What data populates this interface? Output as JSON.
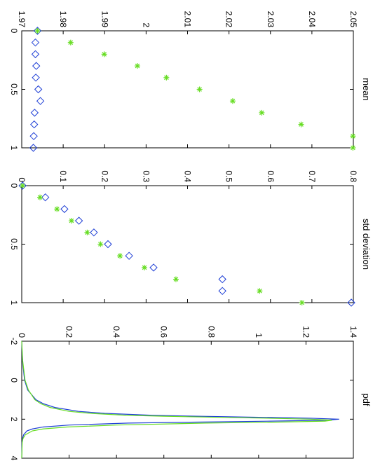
{
  "chart_data": [
    {
      "type": "scatter",
      "title": "mean",
      "xlabel": "",
      "ylabel": "",
      "xlim": [
        0,
        1
      ],
      "ylim": [
        1.97,
        2.05
      ],
      "x_ticks": [
        "0",
        "0.5",
        "1"
      ],
      "y_ticks": [
        "1.97",
        "1.98",
        "1.99",
        "2",
        "2.01",
        "2.02",
        "2.03",
        "2.04",
        "2.05"
      ],
      "x_tick_values": [
        0,
        0.5,
        1
      ],
      "y_tick_values": [
        1.97,
        1.98,
        1.99,
        2.0,
        2.01,
        2.02,
        2.03,
        2.04,
        2.05
      ],
      "series": [
        {
          "marker": "diamond",
          "color": "#1f3fd6",
          "x": [
            0,
            0.1,
            0.2,
            0.3,
            0.4,
            0.5,
            0.6,
            0.7,
            0.8,
            0.9,
            1.0
          ],
          "y": [
            1.9738,
            1.9733,
            1.9733,
            1.9735,
            1.9734,
            1.974,
            1.9745,
            1.9731,
            1.973,
            1.9729,
            1.9728
          ]
        },
        {
          "marker": "asterisk",
          "color": "#66dd22",
          "x": [
            0,
            0.1,
            0.2,
            0.3,
            0.4,
            0.5,
            0.6,
            0.7,
            0.8,
            0.9,
            1.0
          ],
          "y": [
            1.9738,
            1.9818,
            1.9899,
            1.9979,
            2.0049,
            2.0129,
            2.0209,
            2.0279,
            2.0374,
            2.0499,
            2.0499
          ]
        }
      ]
    },
    {
      "type": "scatter",
      "title": "std deviation",
      "xlabel": "",
      "ylabel": "",
      "xlim": [
        0,
        1
      ],
      "ylim": [
        0,
        0.8
      ],
      "x_ticks": [
        "0",
        "0.5",
        "1"
      ],
      "y_ticks": [
        "0",
        "0.1",
        "0.2",
        "0.3",
        "0.4",
        "0.5",
        "0.6",
        "0.7",
        "0.8"
      ],
      "x_tick_values": [
        0,
        0.5,
        1
      ],
      "y_tick_values": [
        0,
        0.1,
        0.2,
        0.3,
        0.4,
        0.5,
        0.6,
        0.7,
        0.8
      ],
      "series": [
        {
          "marker": "diamond",
          "color": "#1f3fd6",
          "x": [
            0,
            0.1,
            0.2,
            0.3,
            0.4,
            0.5,
            0.6,
            0.7,
            0.8,
            0.9,
            1.0
          ],
          "y": [
            0.002,
            0.057,
            0.103,
            0.138,
            0.174,
            0.208,
            0.259,
            0.318,
            0.484,
            0.484,
            0.795
          ]
        },
        {
          "marker": "asterisk",
          "color": "#66dd22",
          "x": [
            0,
            0.1,
            0.2,
            0.3,
            0.4,
            0.5,
            0.6,
            0.7,
            0.8,
            0.9,
            1.0
          ],
          "y": [
            0.002,
            0.044,
            0.085,
            0.12,
            0.158,
            0.19,
            0.237,
            0.296,
            0.372,
            0.574,
            0.676
          ]
        }
      ]
    },
    {
      "type": "line",
      "title": "pdf",
      "xlabel": "",
      "ylabel": "",
      "xlim": [
        -2,
        4
      ],
      "ylim": [
        0,
        1.4
      ],
      "x_ticks": [
        "-2",
        "0",
        "2",
        "4"
      ],
      "y_ticks": [
        "0",
        "0.2",
        "0.4",
        "0.6",
        "0.8",
        "1",
        "1.2",
        "1.4"
      ],
      "x_tick_values": [
        -2,
        0,
        2,
        4
      ],
      "y_tick_values": [
        0,
        0.2,
        0.4,
        0.6,
        0.8,
        1.0,
        1.2,
        1.4
      ],
      "series": [
        {
          "color": "#1f3fd6",
          "x": [
            -2,
            -1,
            0,
            0.5,
            1,
            1.2,
            1.4,
            1.6,
            1.7,
            1.8,
            1.85,
            1.9,
            1.95,
            2.0,
            2.05,
            2.1,
            2.15,
            2.2,
            2.3,
            2.4,
            2.5,
            2.6,
            2.8,
            3.0,
            3.2,
            4.0
          ],
          "y": [
            0,
            0.003,
            0.012,
            0.025,
            0.06,
            0.09,
            0.14,
            0.24,
            0.35,
            0.55,
            0.74,
            1.0,
            1.22,
            1.34,
            1.29,
            1.05,
            0.74,
            0.45,
            0.2,
            0.09,
            0.045,
            0.022,
            0.008,
            0.003,
            0.001,
            0
          ]
        },
        {
          "color": "#66dd22",
          "x": [
            -2,
            -1,
            0,
            0.5,
            1,
            1.2,
            1.4,
            1.6,
            1.7,
            1.8,
            1.85,
            1.9,
            1.95,
            2.0,
            2.05,
            2.1,
            2.15,
            2.2,
            2.3,
            2.4,
            2.5,
            2.6,
            2.8,
            3.0,
            3.2,
            4.0
          ],
          "y": [
            0,
            0.004,
            0.014,
            0.028,
            0.055,
            0.08,
            0.12,
            0.2,
            0.29,
            0.44,
            0.6,
            0.82,
            1.04,
            1.22,
            1.31,
            1.28,
            1.08,
            0.78,
            0.4,
            0.19,
            0.09,
            0.045,
            0.015,
            0.005,
            0.002,
            0
          ]
        }
      ]
    }
  ]
}
